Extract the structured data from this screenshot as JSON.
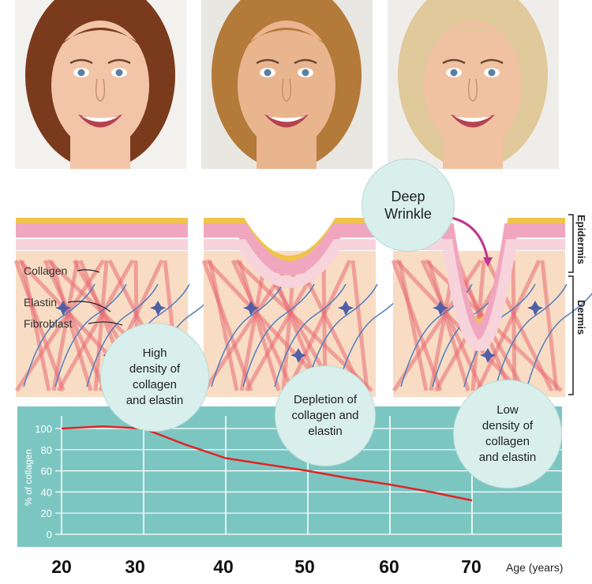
{
  "photos": [
    {
      "id": "young",
      "skin": "#f2c5a8",
      "hair": "#7a3b1c",
      "bg": "#f3f1ee"
    },
    {
      "id": "middle",
      "skin": "#e9b58f",
      "hair": "#b47a3a",
      "bg": "#e9e7e2"
    },
    {
      "id": "older",
      "skin": "#f0c2a2",
      "hair": "#e0c99a",
      "bg": "#efede9"
    }
  ],
  "bubbles": {
    "deep_wrinkle": "Deep\nWrinkle",
    "high_density": "High\ndensity of\ncollagen\nand elastin",
    "depletion": "Depletion of\ncollagen and\nelastin",
    "low_density": "Low\ndensity of\ncollagen\nand elastin"
  },
  "layers": {
    "epidermis": "Epidermis",
    "dermis": "Dermis"
  },
  "labels": {
    "collagen": "Collagen",
    "elastin": "Elastin",
    "fibroblast": "Fibroblast"
  },
  "colors": {
    "chart_bg": "#7cc6c2",
    "line": "#e02424",
    "dermis": "#f8dcc4",
    "collagen": "#e86b74",
    "elastin": "#4f7fc2",
    "fibroblast": "#4f5fa8",
    "yellow": "#f0c34a",
    "pink_layer": "#f1a6bf"
  },
  "chart_data": {
    "type": "line",
    "x": [
      20,
      25,
      30,
      35,
      40,
      45,
      50,
      55,
      60,
      65,
      70
    ],
    "y": [
      100,
      102,
      100,
      85,
      72,
      66,
      60,
      53,
      47,
      40,
      32
    ],
    "ylabel": "% of collagen",
    "xlabel": "Age (years)",
    "yticks": [
      0,
      20,
      40,
      60,
      80,
      100
    ],
    "xticks": [
      20,
      30,
      40,
      50,
      60,
      70
    ],
    "xlim": [
      20,
      72
    ],
    "ylim": [
      0,
      110
    ],
    "grid": true
  }
}
